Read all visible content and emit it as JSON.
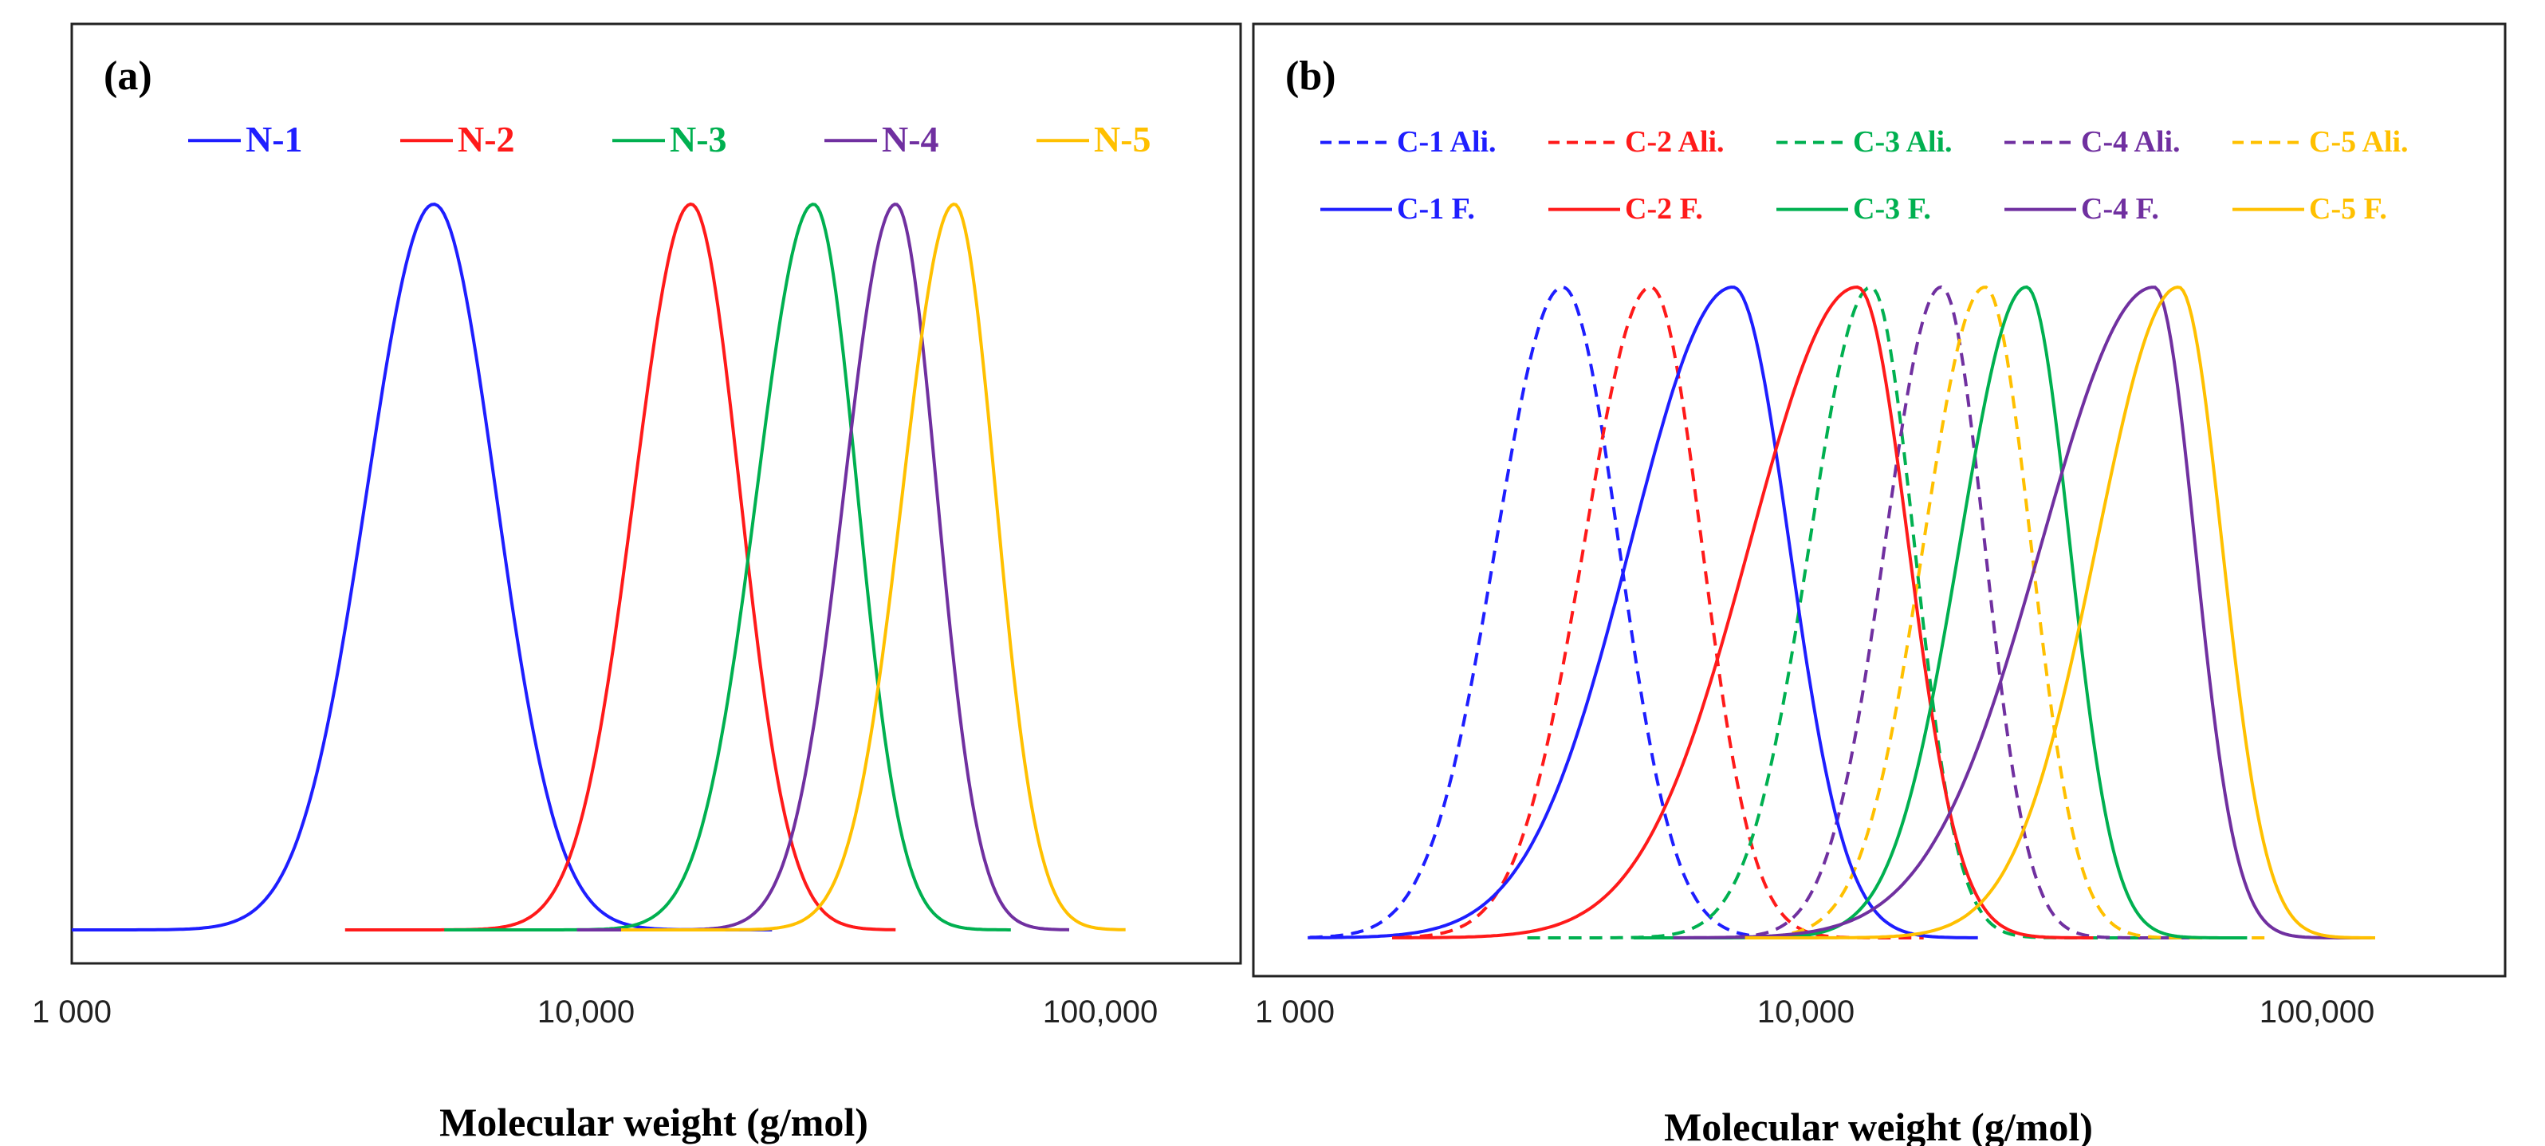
{
  "chart_data": [
    {
      "type": "line",
      "panel_label": "(a)",
      "xlabel": "Molecular weight (g/mol)",
      "ylabel": "",
      "xscale": "log",
      "xlim": [
        1000,
        215000
      ],
      "x_ticks": [
        1000,
        10000,
        100000
      ],
      "x_tick_labels": [
        "1 000",
        "10,000",
        "100,000"
      ],
      "ylim": [
        0,
        1
      ],
      "grid": false,
      "legend_position": "top",
      "series": [
        {
          "name": "N-1",
          "color": "#1E1EFF",
          "dash": false,
          "peak_mw": 5060,
          "sigma_left_log": 0.13,
          "sigma_right_log": 0.12,
          "mw_range": [
            1000,
            23000
          ],
          "peak_intensity": 1
        },
        {
          "name": "N-2",
          "color": "#FF1A1A",
          "dash": false,
          "peak_mw": 16000,
          "sigma_left_log": 0.11,
          "sigma_right_log": 0.095,
          "mw_range": [
            3400,
            40000
          ],
          "peak_intensity": 1
        },
        {
          "name": "N-3",
          "color": "#00B050",
          "dash": false,
          "peak_mw": 27700,
          "sigma_left_log": 0.11,
          "sigma_right_log": 0.085,
          "mw_range": [
            5300,
            67000
          ],
          "peak_intensity": 1
        },
        {
          "name": "N-4",
          "color": "#7030A0",
          "dash": false,
          "peak_mw": 40000,
          "sigma_left_log": 0.1,
          "sigma_right_log": 0.08,
          "mw_range": [
            9600,
            87000
          ],
          "peak_intensity": 1
        },
        {
          "name": "N-5",
          "color": "#FFC000",
          "dash": false,
          "peak_mw": 52000,
          "sigma_left_log": 0.1,
          "sigma_right_log": 0.08,
          "mw_range": [
            11700,
            112000
          ],
          "peak_intensity": 1
        }
      ]
    },
    {
      "type": "line",
      "panel_label": "(b)",
      "xlabel": "Molecular weight (g/mol)",
      "ylabel": "",
      "xscale": "log",
      "xlim": [
        825,
        200000
      ],
      "x_ticks": [
        1000,
        10000,
        100000
      ],
      "x_tick_labels": [
        "1 000",
        "10,000",
        "100,000"
      ],
      "ylim": [
        0,
        1
      ],
      "grid": false,
      "legend_position": "top",
      "series": [
        {
          "name": "C-1 Ali.",
          "color": "#1E1EFF",
          "dash": true,
          "peak_mw": 3340,
          "sigma_left_log": 0.13,
          "sigma_right_log": 0.11,
          "mw_range": [
            1070,
            8500
          ],
          "peak_intensity": 1
        },
        {
          "name": "C-2 Ali.",
          "color": "#FF1A1A",
          "dash": true,
          "peak_mw": 4970,
          "sigma_left_log": 0.13,
          "sigma_right_log": 0.1,
          "mw_range": [
            1600,
            17000
          ],
          "peak_intensity": 1
        },
        {
          "name": "C-3 Ali.",
          "color": "#00B050",
          "dash": true,
          "peak_mw": 13400,
          "sigma_left_log": 0.12,
          "sigma_right_log": 0.085,
          "mw_range": [
            2850,
            73000
          ],
          "peak_intensity": 1
        },
        {
          "name": "C-4 Ali.",
          "color": "#7030A0",
          "dash": true,
          "peak_mw": 18400,
          "sigma_left_log": 0.11,
          "sigma_right_log": 0.085,
          "mw_range": [
            5500,
            59000
          ],
          "peak_intensity": 1
        },
        {
          "name": "C-5 Ali.",
          "color": "#FFC000",
          "dash": true,
          "peak_mw": 22400,
          "sigma_left_log": 0.12,
          "sigma_right_log": 0.09,
          "mw_range": [
            5900,
            80000
          ],
          "peak_intensity": 1
        },
        {
          "name": "C-1 F.",
          "color": "#1E1EFF",
          "dash": false,
          "peak_mw": 7200,
          "sigma_left_log": 0.2,
          "sigma_right_log": 0.11,
          "mw_range": [
            1060,
            21700
          ],
          "peak_intensity": 1
        },
        {
          "name": "C-2 F.",
          "color": "#FF1A1A",
          "dash": false,
          "peak_mw": 12600,
          "sigma_left_log": 0.21,
          "sigma_right_log": 0.1,
          "mw_range": [
            1550,
            36500
          ],
          "peak_intensity": 1
        },
        {
          "name": "C-3 F.",
          "color": "#00B050",
          "dash": false,
          "peak_mw": 27000,
          "sigma_left_log": 0.13,
          "sigma_right_log": 0.085,
          "mw_range": [
            4600,
            73000
          ],
          "peak_intensity": 1
        },
        {
          "name": "C-4 F.",
          "color": "#7030A0",
          "dash": false,
          "peak_mw": 48000,
          "sigma_left_log": 0.22,
          "sigma_right_log": 0.08,
          "mw_range": [
            5500,
            130000
          ],
          "peak_intensity": 1
        },
        {
          "name": "C-5 F.",
          "color": "#FFC000",
          "dash": false,
          "peak_mw": 53600,
          "sigma_left_log": 0.16,
          "sigma_right_log": 0.085,
          "mw_range": [
            7600,
            130000
          ],
          "peak_intensity": 1
        }
      ]
    }
  ]
}
